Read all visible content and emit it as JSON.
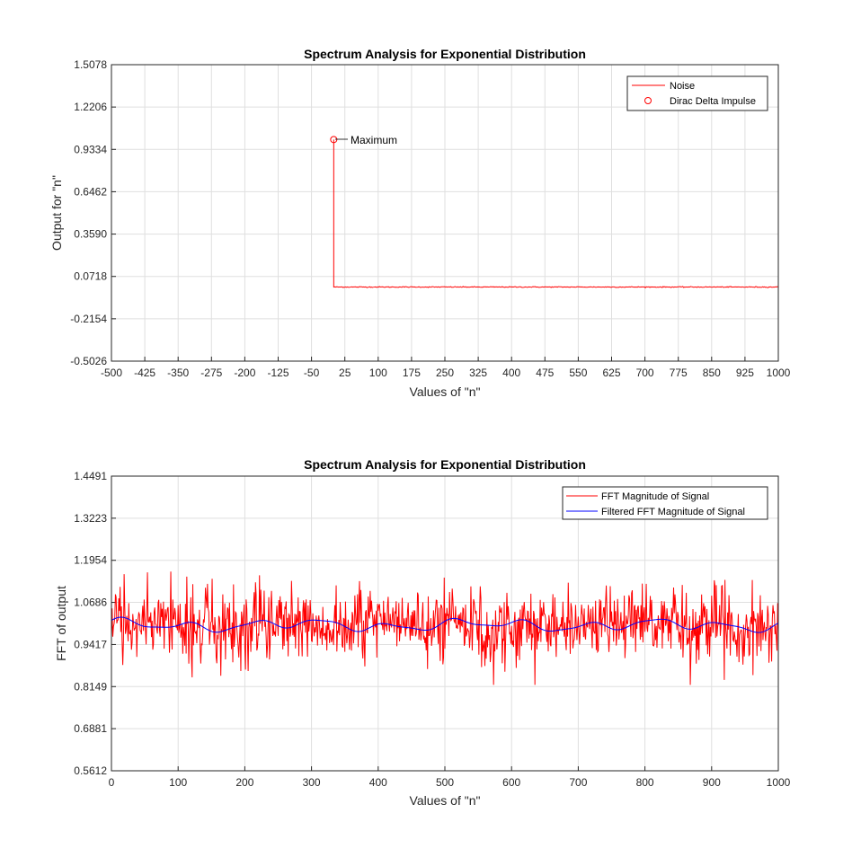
{
  "chart_data": [
    {
      "type": "line",
      "title": "Spectrum Analysis for Exponential Distribution",
      "xlabel": "Values of \"n\"",
      "ylabel": "Output for \"n\"",
      "xlim": [
        -500,
        1000
      ],
      "ylim": [
        -0.5026,
        1.5078
      ],
      "xticks": [
        -500,
        -425,
        -350,
        -275,
        -200,
        -125,
        -50,
        25,
        100,
        175,
        250,
        325,
        400,
        475,
        550,
        625,
        700,
        775,
        850,
        925,
        1000
      ],
      "yticks": [
        -0.5026,
        -0.2154,
        0.0718,
        0.359,
        0.6462,
        0.9334,
        1.2206,
        1.5078
      ],
      "ytick_labels": [
        "-0.5026",
        "-0.2154",
        "0.0718",
        "0.3590",
        "0.6462",
        "0.9334",
        "1.2206",
        "1.5078"
      ],
      "grid": true,
      "legend_position": "top-right",
      "series": [
        {
          "name": "Noise",
          "color": "#ff0000",
          "style": "line",
          "description_points": {
            "impulse_x": 0,
            "impulse_y": 1.0,
            "baseline_start_x": 1,
            "baseline_end_x": 1000,
            "baseline_y": 0.0
          }
        },
        {
          "name": "Dirac Delta Impulse",
          "color": "#ff0000",
          "style": "circle-marker",
          "x": [
            0
          ],
          "y": [
            1.0
          ]
        }
      ],
      "annotations": [
        {
          "text": "Maximum",
          "x": 0,
          "y": 1.0
        }
      ]
    },
    {
      "type": "line",
      "title": "Spectrum Analysis for Exponential Distribution",
      "xlabel": "Values of \"n\"",
      "ylabel": "FFT of output",
      "xlim": [
        0,
        1000
      ],
      "ylim": [
        0.5612,
        1.4491
      ],
      "xticks": [
        0,
        100,
        200,
        300,
        400,
        500,
        600,
        700,
        800,
        900,
        1000
      ],
      "yticks": [
        0.5612,
        0.6881,
        0.8149,
        0.9417,
        1.0686,
        1.1954,
        1.3223,
        1.4491
      ],
      "grid": true,
      "legend_position": "top-right",
      "series": [
        {
          "name": "FFT Magnitude of Signal",
          "color": "#ff0000",
          "style": "line",
          "approx_mean": 1.0,
          "approx_min": 0.82,
          "approx_max": 1.26
        },
        {
          "name": "Filtered FFT Magnitude of Signal",
          "color": "#0000ff",
          "style": "line",
          "approx_mean": 1.0,
          "approx_range": [
            0.98,
            1.02
          ]
        }
      ]
    }
  ]
}
